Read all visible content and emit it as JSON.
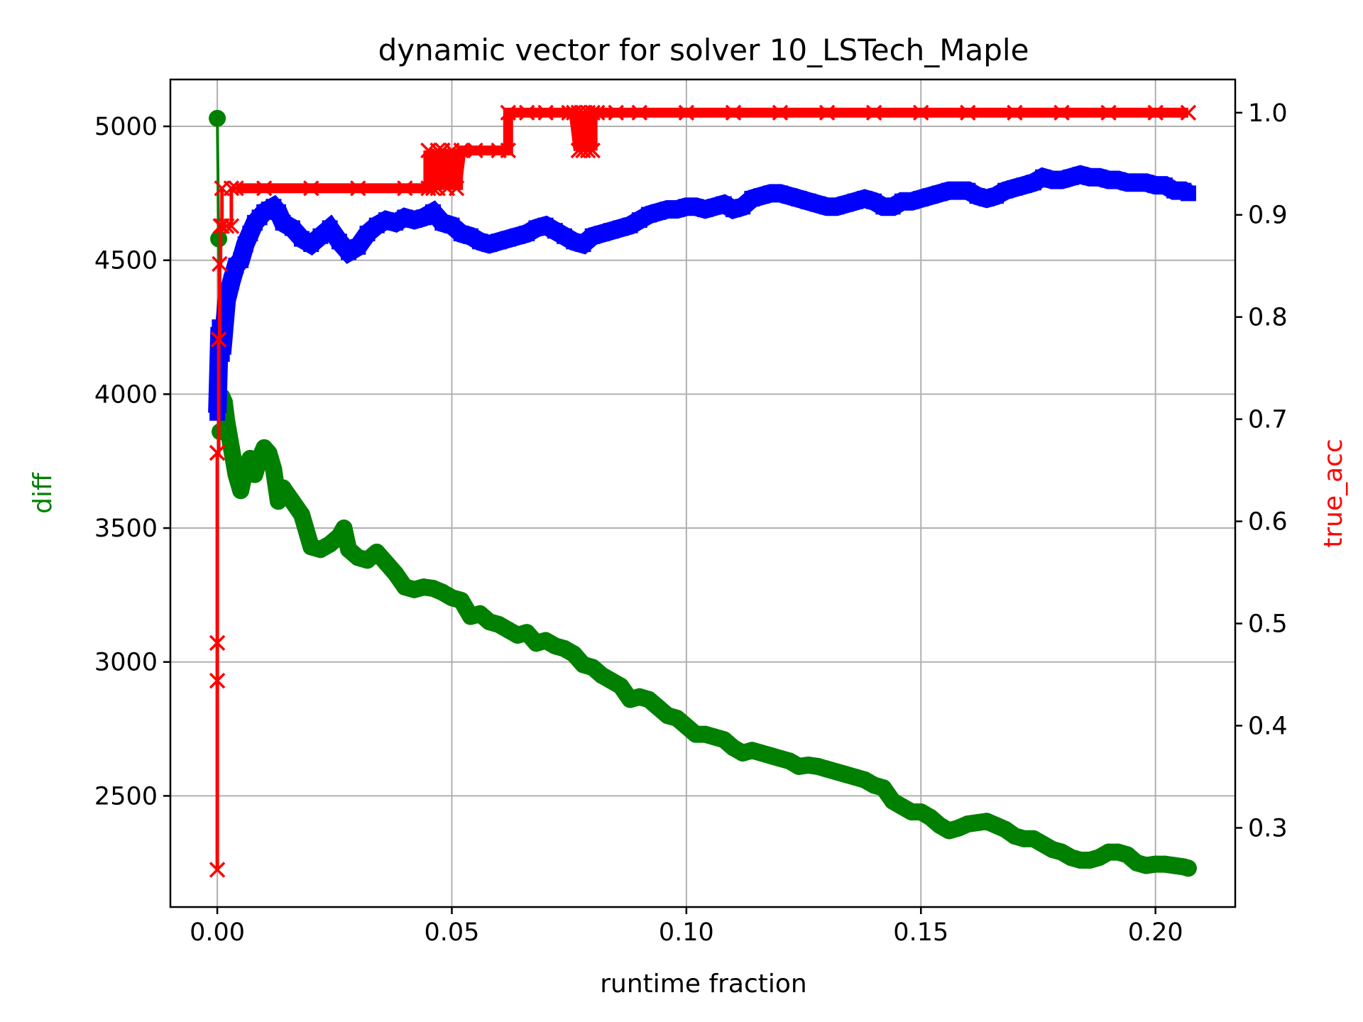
{
  "chart_data": {
    "type": "line",
    "title": "dynamic vector for solver 10_LSTech_Maple",
    "xlabel": "runtime fraction",
    "ylabel_left": "diff",
    "ylabel_right": "true_acc",
    "xlim": [
      -0.01,
      0.217
    ],
    "ylim_left": [
      2085,
      5175
    ],
    "ylim_right": [
      0.2225,
      1.0325
    ],
    "x_ticks": [
      0.0,
      0.05,
      0.1,
      0.15,
      0.2
    ],
    "x_tick_labels": [
      "0.00",
      "0.05",
      "0.10",
      "0.15",
      "0.20"
    ],
    "y_left_ticks": [
      2500,
      3000,
      3500,
      4000,
      4500,
      5000
    ],
    "y_left_tick_labels": [
      "2500",
      "3000",
      "3500",
      "4000",
      "4500",
      "5000"
    ],
    "y_right_ticks": [
      0.3,
      0.4,
      0.5,
      0.6,
      0.7,
      0.8,
      0.9,
      1.0
    ],
    "y_right_tick_labels": [
      "0.3",
      "0.4",
      "0.5",
      "0.6",
      "0.7",
      "0.8",
      "0.9",
      "1.0"
    ],
    "grid": true,
    "colors": {
      "diff": "#008000",
      "blue_series": "#0000ff",
      "true_acc": "#ff0000",
      "grid": "#b0b0b0",
      "axis": "#000000"
    },
    "series": [
      {
        "axis": "left",
        "color": "#008000",
        "marker": "circle",
        "x": [
          0.0,
          0.0003,
          0.0006,
          0.001,
          0.0015,
          0.002,
          0.003,
          0.004,
          0.005,
          0.006,
          0.007,
          0.008,
          0.009,
          0.01,
          0.011,
          0.012,
          0.013,
          0.014,
          0.016,
          0.018,
          0.02,
          0.022,
          0.024,
          0.026,
          0.027,
          0.028,
          0.03,
          0.032,
          0.034,
          0.036,
          0.038,
          0.04,
          0.042,
          0.044,
          0.046,
          0.048,
          0.05,
          0.052,
          0.054,
          0.056,
          0.058,
          0.06,
          0.062,
          0.064,
          0.066,
          0.068,
          0.07,
          0.072,
          0.074,
          0.076,
          0.078,
          0.08,
          0.082,
          0.084,
          0.086,
          0.088,
          0.09,
          0.092,
          0.094,
          0.096,
          0.098,
          0.1,
          0.102,
          0.104,
          0.106,
          0.108,
          0.11,
          0.112,
          0.114,
          0.116,
          0.118,
          0.12,
          0.122,
          0.124,
          0.126,
          0.128,
          0.13,
          0.132,
          0.134,
          0.136,
          0.138,
          0.14,
          0.142,
          0.144,
          0.146,
          0.148,
          0.15,
          0.152,
          0.154,
          0.156,
          0.158,
          0.16,
          0.162,
          0.164,
          0.166,
          0.168,
          0.17,
          0.172,
          0.174,
          0.176,
          0.178,
          0.18,
          0.182,
          0.184,
          0.186,
          0.188,
          0.19,
          0.192,
          0.194,
          0.196,
          0.198,
          0.2,
          0.202,
          0.204,
          0.206,
          0.207
        ],
        "y": [
          5030,
          4580,
          3860,
          3990,
          3970,
          3900,
          3800,
          3700,
          3640,
          3720,
          3760,
          3700,
          3760,
          3800,
          3780,
          3720,
          3600,
          3650,
          3600,
          3550,
          3430,
          3420,
          3440,
          3470,
          3500,
          3420,
          3390,
          3380,
          3410,
          3370,
          3330,
          3280,
          3270,
          3280,
          3275,
          3260,
          3240,
          3230,
          3170,
          3180,
          3150,
          3140,
          3120,
          3100,
          3110,
          3070,
          3080,
          3060,
          3050,
          3030,
          2990,
          2980,
          2950,
          2930,
          2910,
          2860,
          2870,
          2860,
          2830,
          2800,
          2790,
          2760,
          2730,
          2730,
          2720,
          2710,
          2680,
          2660,
          2670,
          2660,
          2650,
          2640,
          2630,
          2610,
          2615,
          2610,
          2600,
          2590,
          2580,
          2570,
          2560,
          2540,
          2530,
          2480,
          2460,
          2440,
          2440,
          2420,
          2390,
          2370,
          2380,
          2395,
          2400,
          2405,
          2390,
          2375,
          2350,
          2340,
          2340,
          2320,
          2300,
          2290,
          2270,
          2260,
          2260,
          2270,
          2290,
          2290,
          2280,
          2250,
          2240,
          2245,
          2245,
          2240,
          2235,
          2230
        ]
      },
      {
        "axis": "left",
        "color": "#0000ff",
        "marker": "square",
        "x": [
          0.0,
          0.0005,
          0.001,
          0.002,
          0.003,
          0.004,
          0.005,
          0.006,
          0.007,
          0.008,
          0.009,
          0.01,
          0.011,
          0.012,
          0.013,
          0.014,
          0.016,
          0.018,
          0.02,
          0.022,
          0.024,
          0.026,
          0.028,
          0.03,
          0.032,
          0.034,
          0.036,
          0.038,
          0.04,
          0.042,
          0.044,
          0.046,
          0.048,
          0.05,
          0.052,
          0.054,
          0.056,
          0.058,
          0.06,
          0.062,
          0.064,
          0.066,
          0.068,
          0.07,
          0.072,
          0.074,
          0.076,
          0.078,
          0.08,
          0.082,
          0.084,
          0.086,
          0.088,
          0.09,
          0.092,
          0.094,
          0.096,
          0.098,
          0.1,
          0.102,
          0.104,
          0.106,
          0.108,
          0.11,
          0.112,
          0.114,
          0.116,
          0.118,
          0.12,
          0.122,
          0.124,
          0.126,
          0.128,
          0.13,
          0.132,
          0.134,
          0.136,
          0.138,
          0.14,
          0.142,
          0.144,
          0.146,
          0.148,
          0.15,
          0.152,
          0.154,
          0.156,
          0.158,
          0.16,
          0.162,
          0.164,
          0.166,
          0.168,
          0.17,
          0.172,
          0.174,
          0.176,
          0.178,
          0.18,
          0.182,
          0.184,
          0.186,
          0.188,
          0.19,
          0.192,
          0.194,
          0.196,
          0.198,
          0.2,
          0.202,
          0.204,
          0.206,
          0.207
        ],
        "y": [
          3930,
          4250,
          4150,
          4350,
          4420,
          4480,
          4500,
          4560,
          4600,
          4640,
          4660,
          4680,
          4690,
          4700,
          4680,
          4640,
          4620,
          4580,
          4560,
          4590,
          4620,
          4570,
          4530,
          4550,
          4600,
          4630,
          4650,
          4640,
          4660,
          4650,
          4660,
          4680,
          4640,
          4630,
          4600,
          4590,
          4570,
          4560,
          4570,
          4580,
          4590,
          4600,
          4620,
          4630,
          4610,
          4590,
          4570,
          4560,
          4590,
          4600,
          4610,
          4620,
          4630,
          4650,
          4670,
          4680,
          4690,
          4690,
          4700,
          4700,
          4690,
          4700,
          4710,
          4690,
          4700,
          4730,
          4740,
          4750,
          4750,
          4740,
          4730,
          4720,
          4710,
          4700,
          4700,
          4710,
          4720,
          4730,
          4720,
          4700,
          4700,
          4720,
          4720,
          4730,
          4740,
          4750,
          4760,
          4760,
          4760,
          4740,
          4730,
          4740,
          4760,
          4770,
          4780,
          4790,
          4810,
          4800,
          4800,
          4810,
          4820,
          4810,
          4810,
          4800,
          4800,
          4790,
          4790,
          4790,
          4780,
          4780,
          4760,
          4760,
          4750
        ]
      },
      {
        "axis": "right",
        "color": "#ff0000",
        "marker": "x",
        "x": [
          0.0,
          0.0,
          0.0,
          0.0,
          0.0,
          0.0003,
          0.0005,
          0.0007,
          0.001,
          0.001,
          0.002,
          0.003,
          0.003,
          0.004,
          0.01,
          0.02,
          0.03,
          0.04,
          0.045,
          0.045,
          0.046,
          0.047,
          0.047,
          0.048,
          0.048,
          0.049,
          0.05,
          0.051,
          0.052,
          0.055,
          0.06,
          0.062,
          0.062,
          0.066,
          0.07,
          0.075,
          0.076,
          0.077,
          0.077,
          0.078,
          0.078,
          0.079,
          0.079,
          0.08,
          0.08,
          0.081,
          0.085,
          0.09,
          0.1,
          0.11,
          0.12,
          0.13,
          0.14,
          0.15,
          0.16,
          0.17,
          0.18,
          0.19,
          0.2,
          0.207
        ],
        "y": [
          0.259,
          0.444,
          0.481,
          0.667,
          0.667,
          0.778,
          0.852,
          0.889,
          0.926,
          0.889,
          0.889,
          0.889,
          0.926,
          0.926,
          0.926,
          0.926,
          0.926,
          0.926,
          0.926,
          0.963,
          0.926,
          0.963,
          0.926,
          0.963,
          0.963,
          0.926,
          0.963,
          0.926,
          0.963,
          0.963,
          0.963,
          0.963,
          1.0,
          1.0,
          1.0,
          1.0,
          1.0,
          0.963,
          1.0,
          0.963,
          1.0,
          0.963,
          1.0,
          0.963,
          1.0,
          1.0,
          1.0,
          1.0,
          1.0,
          1.0,
          1.0,
          1.0,
          1.0,
          1.0,
          1.0,
          1.0,
          1.0,
          1.0,
          1.0,
          1.0
        ]
      }
    ]
  }
}
